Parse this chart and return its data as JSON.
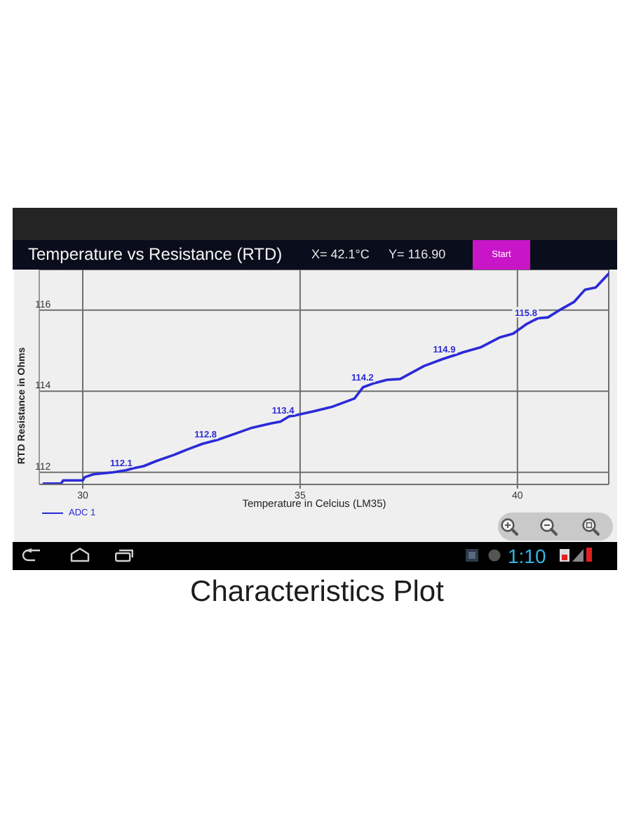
{
  "chart_data": {
    "type": "line",
    "title": "Temperature vs Resistance (RTD)",
    "xlabel": "Temperature in Celcius (LM35)",
    "ylabel": "RTD Resistance in Ohms",
    "x": [
      29.1,
      29.5,
      29.55,
      30.0,
      30.05,
      30.25,
      30.7,
      31.0,
      31.16,
      31.4,
      31.7,
      32.1,
      32.4,
      32.75,
      33.1,
      33.5,
      33.9,
      34.3,
      34.55,
      34.75,
      34.88,
      35.3,
      35.75,
      36.25,
      36.45,
      36.71,
      37.0,
      37.3,
      37.85,
      38.3,
      38.59,
      38.75,
      39.15,
      39.6,
      39.9,
      40.2,
      40.47,
      40.7,
      41.0,
      41.3,
      41.55,
      41.8,
      42.1
    ],
    "series": [
      {
        "name": "ADC 1",
        "color": "#2a2ad8",
        "values": [
          111.72,
          111.72,
          111.8,
          111.8,
          111.88,
          111.95,
          112.0,
          112.05,
          112.1,
          112.15,
          112.28,
          112.43,
          112.56,
          112.7,
          112.8,
          112.95,
          113.1,
          113.2,
          113.25,
          113.38,
          113.4,
          113.5,
          113.62,
          113.82,
          114.1,
          114.2,
          114.28,
          114.3,
          114.62,
          114.8,
          114.9,
          114.96,
          115.08,
          115.33,
          115.42,
          115.65,
          115.8,
          115.82,
          116.02,
          116.2,
          116.5,
          116.56,
          116.9
        ]
      }
    ],
    "xlim": [
      29,
      42.1
    ],
    "xticks": [
      30,
      35,
      40
    ],
    "ylim": [
      111.7,
      117
    ],
    "yticks": [
      112,
      114,
      116
    ],
    "grid": true,
    "legend": "bottom left",
    "annotations": [
      {
        "text": "112.1",
        "x": 31.16,
        "y": 112.1
      },
      {
        "text": "112.8",
        "x": 33.1,
        "y": 112.8
      },
      {
        "text": "113.4",
        "x": 34.88,
        "y": 113.4
      },
      {
        "text": "114.2",
        "x": 36.71,
        "y": 114.2
      },
      {
        "text": "114.9",
        "x": 38.59,
        "y": 114.9
      },
      {
        "text": "115.8",
        "x": 40.47,
        "y": 115.8
      },
      "X= 42.1°C",
      "Y= 116.90",
      "Start",
      "1:10",
      "Characteristics Plot"
    ]
  }
}
